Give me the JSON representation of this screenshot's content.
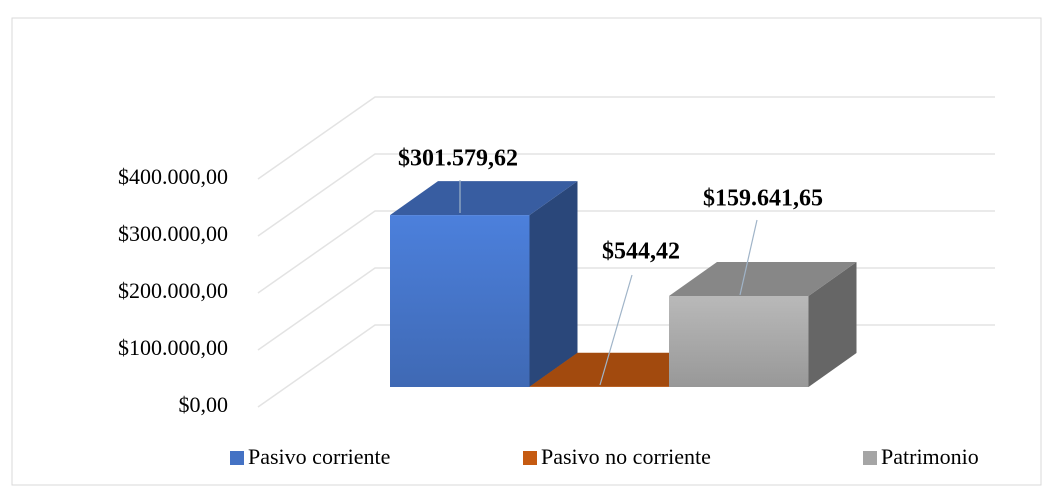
{
  "chart_data": {
    "type": "bar3d",
    "series": [
      {
        "name": "Pasivo corriente",
        "color": "#4472c4",
        "values": [
          301579.62
        ],
        "value_labels": [
          "$301.579,62"
        ]
      },
      {
        "name": "Pasivo no corriente",
        "color": "#c55a11",
        "values": [
          544.42
        ],
        "value_labels": [
          "$544,42"
        ]
      },
      {
        "name": "Patrimonio",
        "color": "#a5a5a5",
        "values": [
          159641.65
        ],
        "value_labels": [
          "$159.641,65"
        ]
      }
    ],
    "ylim": [
      0,
      400000
    ],
    "yticks": [
      {
        "value": 0,
        "label": "$0,00"
      },
      {
        "value": 100000,
        "label": "$100.000,00"
      },
      {
        "value": 200000,
        "label": "$200.000,00"
      },
      {
        "value": 300000,
        "label": "$300.000,00"
      },
      {
        "value": 400000,
        "label": "$400.000,00"
      }
    ],
    "grid": true
  }
}
